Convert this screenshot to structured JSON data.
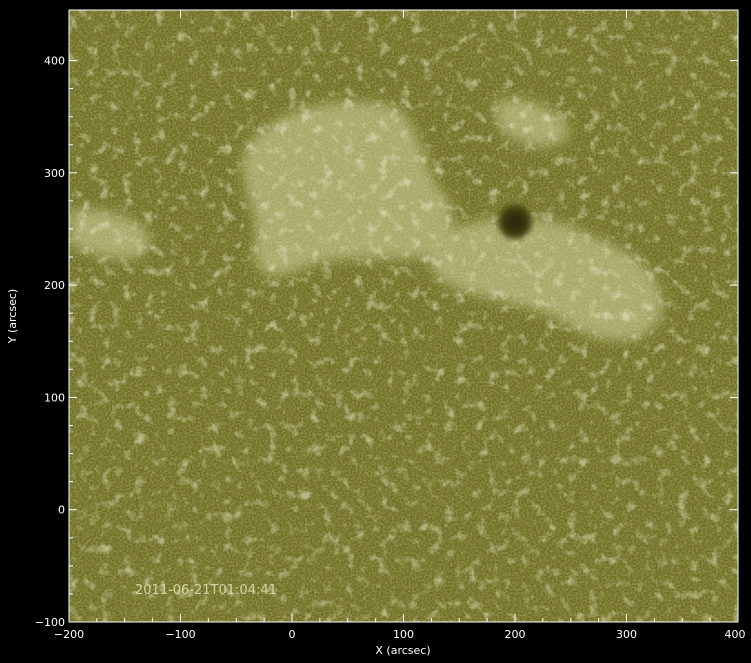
{
  "image": {
    "kind": "solar-chromosphere-image",
    "tint": "#8c8a2e",
    "timestamp": "2011-06-21T01:04:41"
  },
  "axes": {
    "xlabel": "X (arcsec)",
    "ylabel": "Y (arcsec)",
    "xlim": [
      -200,
      400
    ],
    "ylim": [
      -100,
      445
    ],
    "xticks": [
      -200,
      -100,
      0,
      100,
      200,
      300,
      400
    ],
    "yticks": [
      -100,
      0,
      100,
      200,
      300,
      400
    ],
    "xtick_labels": [
      "−200",
      "−100",
      "0",
      "100",
      "200",
      "300",
      "400"
    ],
    "ytick_labels": [
      "−100",
      "0",
      "100",
      "200",
      "300",
      "400"
    ]
  },
  "colors": {
    "background": "#000000",
    "axes": "#ffffff",
    "base": "#6f6e22",
    "bright": "#d6d4a0",
    "dark": "#3f3e10"
  }
}
